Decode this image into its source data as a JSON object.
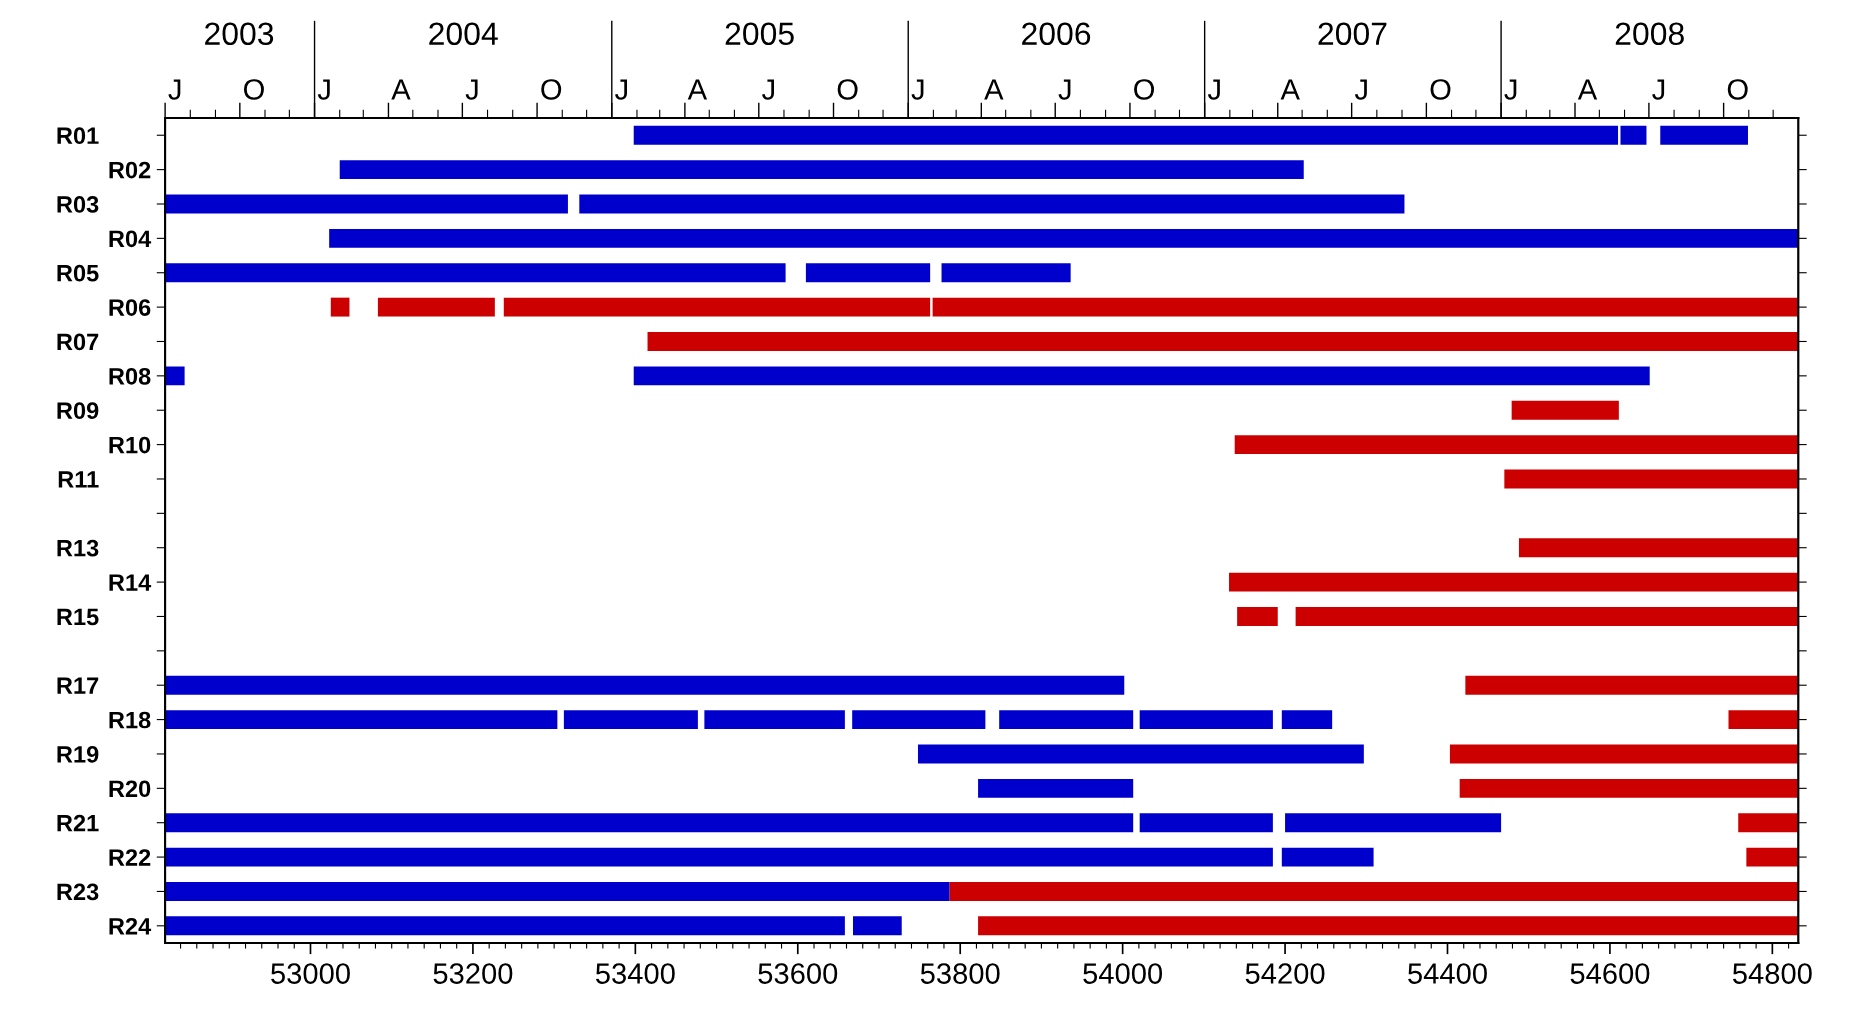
{
  "chart_data": {
    "type": "bar",
    "orientation": "horizontal",
    "categories": [
      "R01",
      "R02",
      "R03",
      "R04",
      "R05",
      "R06",
      "R07",
      "R08",
      "R09",
      "R10",
      "R11",
      null,
      "R13",
      "R14",
      "R15",
      null,
      "R17",
      "R18",
      "R19",
      "R20",
      "R21",
      "R22",
      "R23",
      "R24"
    ],
    "xlim": [
      52821,
      54832
    ],
    "xticks": [
      {
        "value": 52840,
        "label": null
      },
      {
        "value": 52860,
        "label": null
      },
      {
        "value": 52880,
        "label": null
      },
      {
        "value": 52900,
        "label": null
      },
      {
        "value": 52920,
        "label": null
      },
      {
        "value": 52940,
        "label": null
      },
      {
        "value": 52960,
        "label": null
      },
      {
        "value": 52980,
        "label": null
      },
      53000,
      {
        "value": 53020,
        "label": null
      },
      {
        "value": 53040,
        "label": null
      },
      {
        "value": 53060,
        "label": null
      },
      {
        "value": 53080,
        "label": null
      },
      {
        "value": 53100,
        "label": null
      },
      {
        "value": 53120,
        "label": null
      },
      {
        "value": 53140,
        "label": null
      },
      {
        "value": 53160,
        "label": null
      },
      {
        "value": 53180,
        "label": null
      },
      53200,
      {
        "value": 53220,
        "label": null
      },
      {
        "value": 53240,
        "label": null
      },
      {
        "value": 53260,
        "label": null
      },
      {
        "value": 53280,
        "label": null
      },
      {
        "value": 53300,
        "label": null
      },
      {
        "value": 53320,
        "label": null
      },
      {
        "value": 53340,
        "label": null
      },
      {
        "value": 53360,
        "label": null
      },
      {
        "value": 53380,
        "label": null
      },
      53400,
      {
        "value": 53420,
        "label": null
      },
      {
        "value": 53440,
        "label": null
      },
      {
        "value": 53460,
        "label": null
      },
      {
        "value": 53480,
        "label": null
      },
      {
        "value": 53500,
        "label": null
      },
      {
        "value": 53520,
        "label": null
      },
      {
        "value": 53540,
        "label": null
      },
      {
        "value": 53560,
        "label": null
      },
      {
        "value": 53580,
        "label": null
      },
      53600,
      {
        "value": 53620,
        "label": null
      },
      {
        "value": 53640,
        "label": null
      },
      {
        "value": 53660,
        "label": null
      },
      {
        "value": 53680,
        "label": null
      },
      {
        "value": 53700,
        "label": null
      },
      {
        "value": 53720,
        "label": null
      },
      {
        "value": 53740,
        "label": null
      },
      {
        "value": 53760,
        "label": null
      },
      {
        "value": 53780,
        "label": null
      },
      53800,
      {
        "value": 53820,
        "label": null
      },
      {
        "value": 53840,
        "label": null
      },
      {
        "value": 53860,
        "label": null
      },
      {
        "value": 53880,
        "label": null
      },
      {
        "value": 53900,
        "label": null
      },
      {
        "value": 53920,
        "label": null
      },
      {
        "value": 53940,
        "label": null
      },
      {
        "value": 53960,
        "label": null
      },
      {
        "value": 53980,
        "label": null
      },
      54000,
      {
        "value": 54020,
        "label": null
      },
      {
        "value": 54040,
        "label": null
      },
      {
        "value": 54060,
        "label": null
      },
      {
        "value": 54080,
        "label": null
      },
      {
        "value": 54100,
        "label": null
      },
      {
        "value": 54120,
        "label": null
      },
      {
        "value": 54140,
        "label": null
      },
      {
        "value": 54160,
        "label": null
      },
      {
        "value": 54180,
        "label": null
      },
      54200,
      {
        "value": 54220,
        "label": null
      },
      {
        "value": 54240,
        "label": null
      },
      {
        "value": 54260,
        "label": null
      },
      {
        "value": 54280,
        "label": null
      },
      {
        "value": 54300,
        "label": null
      },
      {
        "value": 54320,
        "label": null
      },
      {
        "value": 54340,
        "label": null
      },
      {
        "value": 54360,
        "label": null
      },
      {
        "value": 54380,
        "label": null
      },
      54400,
      {
        "value": 54420,
        "label": null
      },
      {
        "value": 54440,
        "label": null
      },
      {
        "value": 54460,
        "label": null
      },
      {
        "value": 54480,
        "label": null
      },
      {
        "value": 54500,
        "label": null
      },
      {
        "value": 54520,
        "label": null
      },
      {
        "value": 54540,
        "label": null
      },
      {
        "value": 54560,
        "label": null
      },
      {
        "value": 54580,
        "label": null
      },
      54600,
      {
        "value": 54620,
        "label": null
      },
      {
        "value": 54640,
        "label": null
      },
      {
        "value": 54660,
        "label": null
      },
      {
        "value": 54680,
        "label": null
      },
      {
        "value": 54700,
        "label": null
      },
      {
        "value": 54720,
        "label": null
      },
      {
        "value": 54740,
        "label": null
      },
      {
        "value": 54760,
        "label": null
      },
      {
        "value": 54780,
        "label": null
      },
      54800,
      {
        "value": 54820,
        "label": null
      }
    ],
    "x2lim": [
      "2003-07-01",
      "2009-01-01"
    ],
    "x2ticks": [
      {
        "value": "2003-09-30",
        "label": "2003"
      },
      {
        "value": "2004-07-02",
        "label": "2004"
      },
      {
        "value": "2005-07-02",
        "label": "2005"
      },
      {
        "value": "2006-07-02",
        "label": "2006"
      },
      {
        "value": "2007-07-02",
        "label": "2007"
      },
      {
        "value": "2008-07-02",
        "label": "2008"
      },
      {
        "value": "2003-07-01",
        "label": null
      },
      {
        "value": "2003-08-01",
        "label": null
      },
      {
        "value": "2003-09-01",
        "label": null
      },
      {
        "value": "2003-10-01",
        "label": null
      },
      {
        "value": "2003-11-01",
        "label": null
      },
      {
        "value": "2003-12-01",
        "label": null
      },
      {
        "value": "2004-01-01",
        "label": null
      },
      {
        "value": "2004-02-01",
        "label": null
      },
      {
        "value": "2004-03-01",
        "label": null
      },
      {
        "value": "2004-04-01",
        "label": null
      },
      {
        "value": "2004-05-01",
        "label": null
      },
      {
        "value": "2004-06-01",
        "label": null
      },
      {
        "value": "2004-07-01",
        "label": null
      },
      {
        "value": "2004-08-01",
        "label": null
      },
      {
        "value": "2004-09-01",
        "label": null
      },
      {
        "value": "2004-10-01",
        "label": null
      },
      {
        "value": "2004-11-01",
        "label": null
      },
      {
        "value": "2004-12-01",
        "label": null
      },
      {
        "value": "2005-01-01",
        "label": null
      },
      {
        "value": "2005-02-01",
        "label": null
      },
      {
        "value": "2005-03-01",
        "label": null
      },
      {
        "value": "2005-04-01",
        "label": null
      },
      {
        "value": "2005-05-01",
        "label": null
      },
      {
        "value": "2005-06-01",
        "label": null
      },
      {
        "value": "2005-07-01",
        "label": null
      },
      {
        "value": "2005-08-01",
        "label": null
      },
      {
        "value": "2005-09-01",
        "label": null
      },
      {
        "value": "2005-10-01",
        "label": null
      },
      {
        "value": "2005-11-01",
        "label": null
      },
      {
        "value": "2005-12-01",
        "label": null
      },
      {
        "value": "2006-01-01",
        "label": null
      },
      {
        "value": "2006-02-01",
        "label": null
      },
      {
        "value": "2006-03-01",
        "label": null
      },
      {
        "value": "2006-04-01",
        "label": null
      },
      {
        "value": "2006-05-01",
        "label": null
      },
      {
        "value": "2006-06-01",
        "label": null
      },
      {
        "value": "2006-07-01",
        "label": null
      },
      {
        "value": "2006-08-01",
        "label": null
      },
      {
        "value": "2006-09-01",
        "label": null
      },
      {
        "value": "2006-10-01",
        "label": null
      },
      {
        "value": "2006-11-01",
        "label": null
      },
      {
        "value": "2006-12-01",
        "label": null
      },
      {
        "value": "2007-01-01",
        "label": null
      },
      {
        "value": "2007-02-01",
        "label": null
      },
      {
        "value": "2007-03-01",
        "label": null
      },
      {
        "value": "2007-04-01",
        "label": null
      },
      {
        "value": "2007-05-01",
        "label": null
      },
      {
        "value": "2007-06-01",
        "label": null
      },
      {
        "value": "2007-07-01",
        "label": null
      },
      {
        "value": "2007-08-01",
        "label": null
      },
      {
        "value": "2007-09-01",
        "label": null
      },
      {
        "value": "2007-10-01",
        "label": null
      },
      {
        "value": "2007-11-01",
        "label": null
      },
      {
        "value": "2007-12-01",
        "label": null
      },
      {
        "value": "2008-01-01",
        "label": null
      },
      {
        "value": "2008-02-01",
        "label": null
      },
      {
        "value": "2008-03-01",
        "label": null
      },
      {
        "value": "2008-04-01",
        "label": null
      },
      {
        "value": "2008-05-01",
        "label": null
      },
      {
        "value": "2008-06-01",
        "label": null
      },
      {
        "value": "2008-07-01",
        "label": null
      },
      {
        "value": "2008-08-01",
        "label": null
      },
      {
        "value": "2008-09-01",
        "label": null
      },
      {
        "value": "2008-10-01",
        "label": null
      },
      {
        "value": "2008-11-01",
        "label": null
      },
      {
        "value": "2008-12-01",
        "label": null
      }
    ],
    "annotations": [
      "J",
      "O",
      "J",
      "A",
      "J",
      "O",
      "J",
      "A",
      "J",
      "O",
      "J",
      "A",
      "J",
      "O",
      "J",
      "A",
      "J",
      "O",
      "J",
      "A",
      "J",
      "O"
    ],
    "series": [
      {
        "base": [
          53398,
          53036,
          52821,
          53023,
          52821,
          53025,
          53415,
          52821,
          54479,
          54138,
          54470,
          null,
          54488,
          54131,
          54141,
          null,
          52821,
          52821,
          53748,
          53822,
          52821,
          52821,
          52821,
          52821
        ],
        "values": [
          1212,
          1187,
          496,
          1809,
          764,
          23,
          1417,
          24,
          132,
          694,
          362,
          null,
          344,
          701,
          50,
          null,
          1181,
          483,
          549,
          191,
          1192,
          1364,
          966,
          837
        ],
        "colors": [
          "#0000cc",
          "#0000cc",
          "#0000cc",
          "#0000cc",
          "#0000cc",
          "#cc0000",
          "#cc0000",
          "#0000cc",
          "#cc0000",
          "#cc0000",
          "#cc0000",
          null,
          "#cc0000",
          "#cc0000",
          "#cc0000",
          null,
          "#0000cc",
          "#0000cc",
          "#0000cc",
          "#0000cc",
          "#0000cc",
          "#0000cc",
          "#0000cc",
          "#0000cc"
        ]
      },
      {
        "base": [
          54613,
          null,
          53331,
          null,
          53610,
          53083,
          null,
          53398,
          null,
          null,
          null,
          null,
          null,
          null,
          54213,
          null,
          54422,
          53312,
          54403,
          54415,
          54021,
          54196,
          53787,
          53668
        ],
        "values": [
          32,
          null,
          1016,
          null,
          153,
          144,
          null,
          1251,
          null,
          null,
          null,
          null,
          null,
          null,
          619,
          null,
          410,
          165,
          429,
          417,
          164,
          113,
          1045,
          60
        ],
        "colors": [
          "#0000cc",
          null,
          "#0000cc",
          null,
          "#0000cc",
          "#cc0000",
          null,
          "#0000cc",
          null,
          null,
          null,
          null,
          null,
          null,
          "#cc0000",
          null,
          "#cc0000",
          "#0000cc",
          "#cc0000",
          "#cc0000",
          "#0000cc",
          "#0000cc",
          "#cc0000",
          "#0000cc"
        ]
      },
      {
        "base": [
          54662,
          null,
          null,
          null,
          53777,
          53238,
          null,
          null,
          null,
          null,
          null,
          null,
          null,
          null,
          null,
          null,
          null,
          53485,
          null,
          null,
          54200,
          54768,
          null,
          53822
        ],
        "values": [
          108,
          null,
          null,
          null,
          159,
          525,
          null,
          null,
          null,
          null,
          null,
          null,
          null,
          null,
          null,
          null,
          null,
          173,
          null,
          null,
          266,
          64,
          null,
          1010
        ],
        "colors": [
          "#0000cc",
          null,
          null,
          null,
          "#0000cc",
          "#cc0000",
          null,
          null,
          null,
          null,
          null,
          null,
          null,
          null,
          null,
          null,
          null,
          "#0000cc",
          null,
          null,
          "#0000cc",
          "#cc0000",
          null,
          "#cc0000"
        ]
      },
      {
        "base": [
          null,
          null,
          null,
          null,
          null,
          53766,
          null,
          null,
          null,
          null,
          null,
          null,
          null,
          null,
          null,
          null,
          null,
          53667,
          null,
          null,
          54758,
          null,
          null,
          null
        ],
        "values": [
          null,
          null,
          null,
          null,
          null,
          1066,
          null,
          null,
          null,
          null,
          null,
          null,
          null,
          null,
          null,
          null,
          null,
          164,
          null,
          null,
          74,
          null,
          null,
          null
        ],
        "colors": [
          null,
          null,
          null,
          null,
          null,
          "#cc0000",
          null,
          null,
          null,
          null,
          null,
          null,
          null,
          null,
          null,
          null,
          null,
          "#0000cc",
          null,
          null,
          "#cc0000",
          null,
          null,
          null
        ]
      },
      {
        "base": [
          null,
          null,
          null,
          null,
          null,
          null,
          null,
          null,
          null,
          null,
          null,
          null,
          null,
          null,
          null,
          null,
          null,
          53848,
          null,
          null,
          null,
          null,
          null,
          null
        ],
        "values": [
          null,
          null,
          null,
          null,
          null,
          null,
          null,
          null,
          null,
          null,
          null,
          null,
          null,
          null,
          null,
          null,
          null,
          165,
          null,
          null,
          null,
          null,
          null,
          null
        ],
        "colors": [
          null,
          null,
          null,
          null,
          null,
          null,
          null,
          null,
          null,
          null,
          null,
          null,
          null,
          null,
          null,
          null,
          null,
          "#0000cc",
          null,
          null,
          null,
          null,
          null,
          null
        ]
      },
      {
        "base": [
          null,
          null,
          null,
          null,
          null,
          null,
          null,
          null,
          null,
          null,
          null,
          null,
          null,
          null,
          null,
          null,
          null,
          54021,
          null,
          null,
          null,
          null,
          null,
          null
        ],
        "values": [
          null,
          null,
          null,
          null,
          null,
          null,
          null,
          null,
          null,
          null,
          null,
          null,
          null,
          null,
          null,
          null,
          null,
          164,
          null,
          null,
          null,
          null,
          null,
          null
        ],
        "colors": [
          null,
          null,
          null,
          null,
          null,
          null,
          null,
          null,
          null,
          null,
          null,
          null,
          null,
          null,
          null,
          null,
          null,
          "#0000cc",
          null,
          null,
          null,
          null,
          null,
          null
        ]
      },
      {
        "base": [
          null,
          null,
          null,
          null,
          null,
          null,
          null,
          null,
          null,
          null,
          null,
          null,
          null,
          null,
          null,
          null,
          null,
          54196,
          null,
          null,
          null,
          null,
          null,
          null
        ],
        "values": [
          null,
          null,
          null,
          null,
          null,
          null,
          null,
          null,
          null,
          null,
          null,
          null,
          null,
          null,
          null,
          null,
          null,
          62,
          null,
          null,
          null,
          null,
          null,
          null
        ],
        "colors": [
          null,
          null,
          null,
          null,
          null,
          null,
          null,
          null,
          null,
          null,
          null,
          null,
          null,
          null,
          null,
          null,
          null,
          "#0000cc",
          null,
          null,
          null,
          null,
          null,
          null
        ]
      },
      {
        "base": [
          null,
          null,
          null,
          null,
          null,
          null,
          null,
          null,
          null,
          null,
          null,
          null,
          null,
          null,
          null,
          null,
          null,
          54746,
          null,
          null,
          null,
          null,
          null,
          null
        ],
        "values": [
          null,
          null,
          null,
          null,
          null,
          null,
          null,
          null,
          null,
          null,
          null,
          null,
          null,
          null,
          null,
          null,
          null,
          86,
          null,
          null,
          null,
          null,
          null,
          null
        ],
        "colors": [
          null,
          null,
          null,
          null,
          null,
          null,
          null,
          null,
          null,
          null,
          null,
          null,
          null,
          null,
          null,
          null,
          null,
          "#cc0000",
          null,
          null,
          null,
          null,
          null,
          null
        ]
      }
    ]
  }
}
